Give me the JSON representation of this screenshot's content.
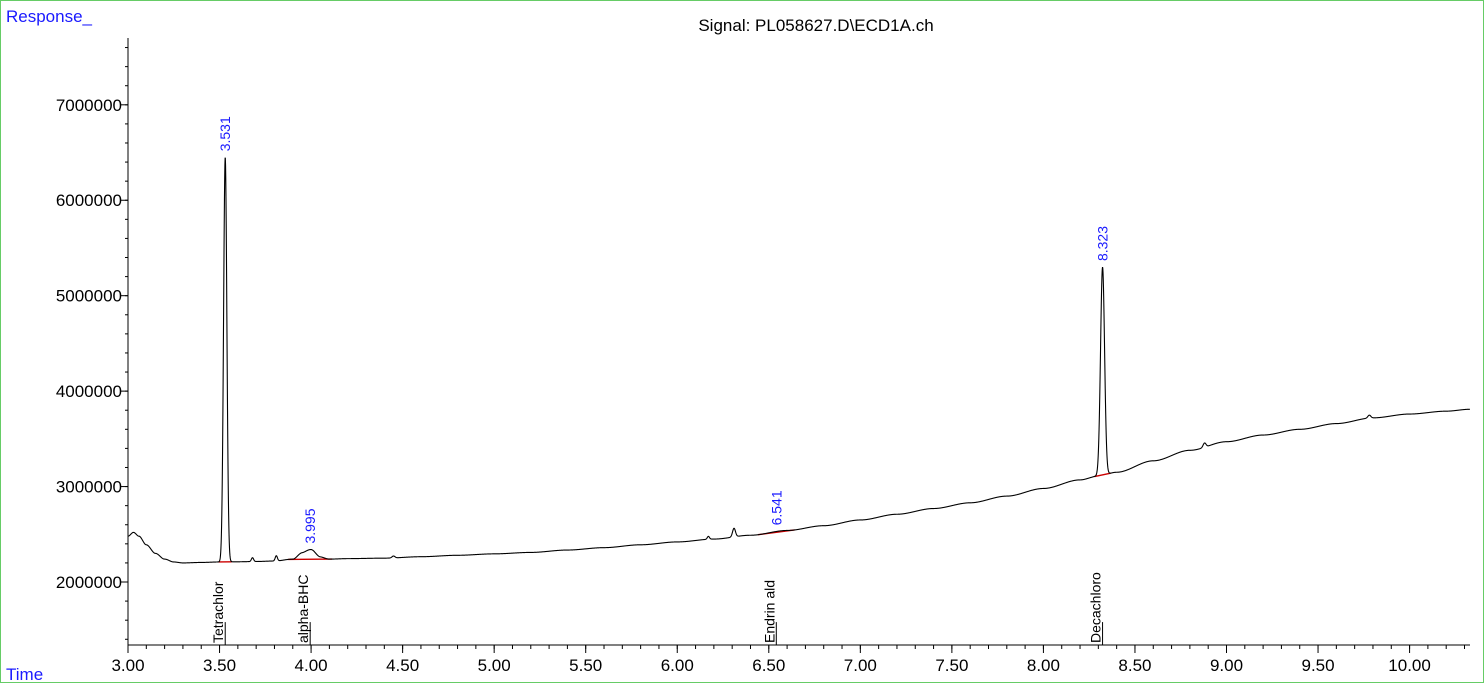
{
  "chart_data": {
    "type": "line",
    "title": "Signal: PL058627.D\\ECD1A.ch",
    "ylabel": "Response_",
    "xlabel": "Time",
    "xlim": [
      3.0,
      10.33
    ],
    "ylim": [
      1340000,
      7700000
    ],
    "x_ticks": [
      "3.00",
      "3.50",
      "4.00",
      "4.50",
      "5.00",
      "5.50",
      "6.00",
      "6.50",
      "7.00",
      "7.50",
      "8.00",
      "8.50",
      "9.00",
      "9.50",
      "10.00"
    ],
    "x_tick_values": [
      3.0,
      3.5,
      4.0,
      4.5,
      5.0,
      5.5,
      6.0,
      6.5,
      7.0,
      7.5,
      8.0,
      8.5,
      9.0,
      9.5,
      10.0
    ],
    "y_ticks": [
      "2000000",
      "3000000",
      "4000000",
      "5000000",
      "6000000",
      "7000000"
    ],
    "y_tick_values": [
      2000000,
      3000000,
      4000000,
      5000000,
      6000000,
      7000000
    ],
    "grid": false,
    "baseline": [
      [
        3.0,
        2480000
      ],
      [
        3.03,
        2520000
      ],
      [
        3.06,
        2480000
      ],
      [
        3.1,
        2390000
      ],
      [
        3.15,
        2300000
      ],
      [
        3.2,
        2240000
      ],
      [
        3.25,
        2210000
      ],
      [
        3.3,
        2200000
      ],
      [
        3.4,
        2205000
      ],
      [
        3.5,
        2210000
      ],
      [
        3.6,
        2212000
      ],
      [
        3.7,
        2215000
      ],
      [
        3.8,
        2220000
      ],
      [
        3.9,
        2240000
      ],
      [
        3.95,
        2300000
      ],
      [
        4.0,
        2320000
      ],
      [
        4.05,
        2260000
      ],
      [
        4.1,
        2240000
      ],
      [
        4.2,
        2245000
      ],
      [
        4.4,
        2250000
      ],
      [
        4.6,
        2265000
      ],
      [
        4.8,
        2280000
      ],
      [
        5.0,
        2295000
      ],
      [
        5.2,
        2310000
      ],
      [
        5.4,
        2335000
      ],
      [
        5.6,
        2360000
      ],
      [
        5.8,
        2390000
      ],
      [
        6.0,
        2420000
      ],
      [
        6.2,
        2450000
      ],
      [
        6.4,
        2490000
      ],
      [
        6.6,
        2540000
      ],
      [
        6.8,
        2590000
      ],
      [
        7.0,
        2650000
      ],
      [
        7.2,
        2710000
      ],
      [
        7.4,
        2770000
      ],
      [
        7.6,
        2830000
      ],
      [
        7.8,
        2900000
      ],
      [
        8.0,
        2980000
      ],
      [
        8.2,
        3070000
      ],
      [
        8.3,
        3110000
      ],
      [
        8.4,
        3150000
      ],
      [
        8.6,
        3270000
      ],
      [
        8.8,
        3380000
      ],
      [
        9.0,
        3470000
      ],
      [
        9.2,
        3540000
      ],
      [
        9.4,
        3600000
      ],
      [
        9.6,
        3660000
      ],
      [
        9.8,
        3720000
      ],
      [
        10.0,
        3760000
      ],
      [
        10.2,
        3790000
      ],
      [
        10.33,
        3810000
      ]
    ],
    "minor_bumps": [
      {
        "rt": 3.68,
        "height": 40000,
        "width": 0.006
      },
      {
        "rt": 3.81,
        "height": 55000,
        "width": 0.006
      },
      {
        "rt": 4.45,
        "height": 20000,
        "width": 0.008
      },
      {
        "rt": 6.17,
        "height": 30000,
        "width": 0.006
      },
      {
        "rt": 6.31,
        "height": 90000,
        "width": 0.008
      },
      {
        "rt": 8.88,
        "height": 45000,
        "width": 0.008
      },
      {
        "rt": 9.78,
        "height": 30000,
        "width": 0.008
      }
    ],
    "peaks": [
      {
        "rt": 3.531,
        "rt_label": "3.531",
        "apex": 6450000,
        "width": 0.009,
        "compound": "Tetrachlor",
        "integrated": true
      },
      {
        "rt": 3.995,
        "rt_label": "3.995",
        "apex": 2340000,
        "width": 0.03,
        "compound": "alpha-BHC",
        "integrated": true
      },
      {
        "rt": 6.541,
        "rt_label": "6.541",
        "apex": 2530000,
        "width": 0.0,
        "compound": "Endrin ald",
        "integrated": true
      },
      {
        "rt": 8.323,
        "rt_label": "8.323",
        "apex": 5300000,
        "width": 0.011,
        "compound": "Decachloro",
        "integrated": true
      }
    ],
    "colors": {
      "trace": "#000000",
      "rt_label": "#1a1aff",
      "axis_label": "#1a1aff",
      "integration": "#cc0000",
      "frame": "#66cc66"
    }
  }
}
